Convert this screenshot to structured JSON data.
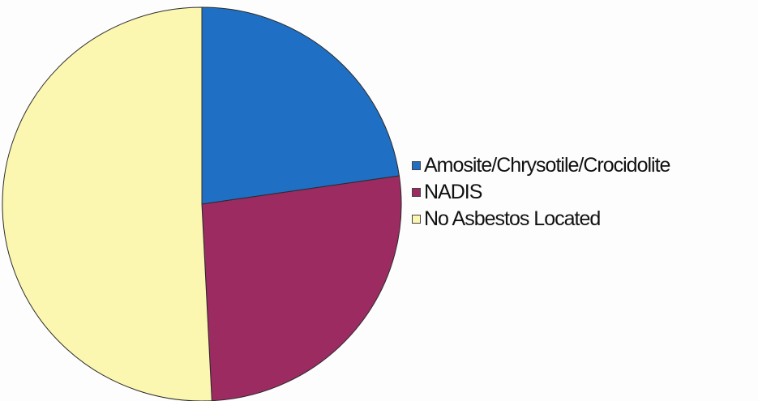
{
  "chart_data": {
    "type": "pie",
    "title": "",
    "start_angle_deg": 0,
    "direction": "clockwise",
    "slices": [
      {
        "label": "Amosite/Chrysotile/Crocidolite",
        "value": 22.7,
        "color": "#1f6fc4"
      },
      {
        "label": "NADIS",
        "value": 26.5,
        "color": "#9c2b62"
      },
      {
        "label": "No Asbestos Located",
        "value": 50.8,
        "color": "#fbf6b0"
      }
    ],
    "legend": {
      "placement": "right"
    }
  }
}
